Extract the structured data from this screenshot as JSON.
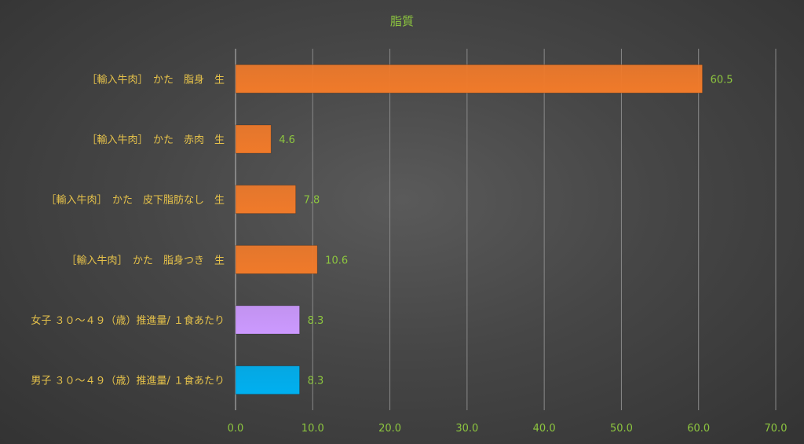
{
  "chart_data": {
    "type": "bar",
    "orientation": "horizontal",
    "title": "脂質",
    "categories": [
      "［輸入牛肉］　かた　脂身　生",
      "［輸入牛肉］　かた　赤肉　生",
      "［輸入牛肉］　かた　皮下脂肪なし　生",
      "［輸入牛肉］　かた　脂身つき　生",
      "女子 ３０～４９（歳）推進量/ １食あたり",
      "男子 ３０～４９（歳）推進量/ １食あたり"
    ],
    "values": [
      60.5,
      4.6,
      7.8,
      10.6,
      8.3,
      8.3
    ],
    "value_labels": [
      "60.5",
      "4.6",
      "7.8",
      "10.6",
      "8.3",
      "8.3"
    ],
    "bar_colors": [
      "#f07a2a",
      "#f07a2a",
      "#f07a2a",
      "#f07a2a",
      "#cc99ff",
      "#00b0f0"
    ],
    "xlim": [
      0,
      70
    ],
    "x_ticks": [
      0,
      10,
      20,
      30,
      40,
      50,
      60,
      70
    ],
    "x_tick_labels": [
      "0.0",
      "10.0",
      "20.0",
      "30.0",
      "40.0",
      "50.0",
      "60.0",
      "70.0"
    ],
    "grid": true,
    "legend": "none",
    "colors": {
      "title": "#8dc63f",
      "category_text": "#e6c24a",
      "tick_text": "#8dc63f",
      "data_label_text": "#8dc63f",
      "gridline": "#8a8a8a"
    }
  }
}
